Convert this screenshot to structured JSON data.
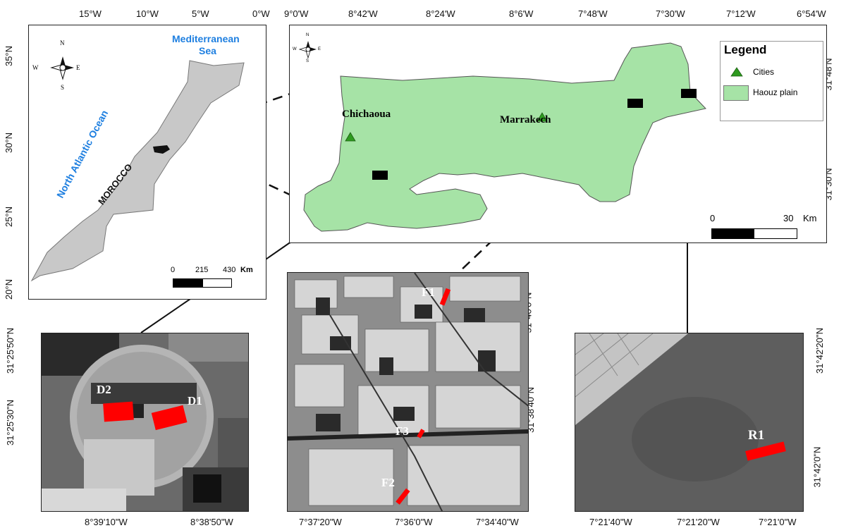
{
  "overview": {
    "top_ticks": [
      "15°W",
      "10°W",
      "5°W",
      "0°W"
    ],
    "left_ticks": [
      "35°N",
      "30°N",
      "25°N",
      "20°N"
    ],
    "sea_label": [
      "Mediterranean",
      "Sea"
    ],
    "ocean_label": "North Atlantic Ocean",
    "country_label": "MOROCCO",
    "scale": {
      "labels": [
        "0",
        "215",
        "430"
      ],
      "unit": "Km"
    },
    "north_arrow": {
      "n": "N",
      "s": "S",
      "e": "E",
      "w": "W"
    }
  },
  "haouz": {
    "top_ticks": [
      "9°0'W",
      "8°42'W",
      "8°24'W",
      "8°6'W",
      "7°48'W",
      "7°30'W",
      "7°12'W",
      "6°54'W"
    ],
    "right_ticks": [
      "31°48'N",
      "31°30'N"
    ],
    "cities": [
      "Chichaoua",
      "Marrakech"
    ],
    "legend": {
      "title": "Legend",
      "items": [
        "Cities",
        "Haouz plain"
      ],
      "colors": {
        "city": "#2e9a1f",
        "plain": "#a6e3a6"
      }
    },
    "scale": {
      "labels": [
        "0",
        "30"
      ],
      "unit": "Km"
    },
    "north_arrow": {
      "n": "N",
      "s": "S",
      "e": "E",
      "w": "W"
    }
  },
  "site_d": {
    "bottom_ticks": [
      "8°39'10\"W",
      "8°38'50\"W"
    ],
    "left_ticks": [
      "31°25'50\"N",
      "31°25'30\"N"
    ],
    "fields": [
      "D2",
      "D1"
    ]
  },
  "site_f": {
    "bottom_ticks": [
      "7°37'20\"W",
      "7°36'0\"W",
      "7°34'40\"W"
    ],
    "right_ticks": [
      "31°40'0\"N",
      "31°38'40\"N"
    ],
    "fields": [
      "F1",
      "F3",
      "F2"
    ]
  },
  "site_r": {
    "bottom_ticks": [
      "7°21'40\"W",
      "7°21'20\"W",
      "7°21'0\"W"
    ],
    "right_ticks": [
      "31°42'20\"N",
      "31°42'0\"N"
    ],
    "fields": [
      "R1"
    ]
  },
  "colors": {
    "field_marker": "#ff0000",
    "morocco_fill": "#c8c8c8",
    "plain_fill": "#a6e3a6"
  }
}
